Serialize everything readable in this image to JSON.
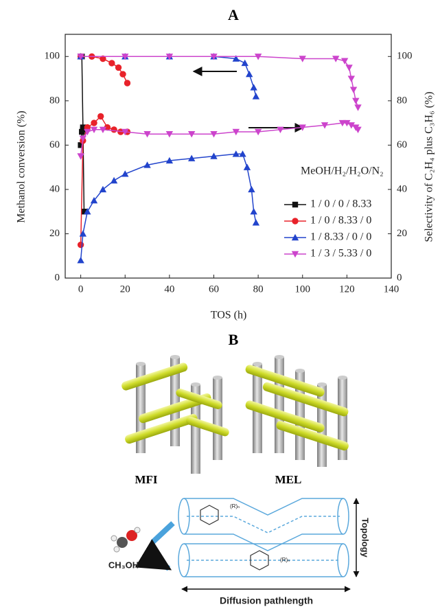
{
  "chart_data": {
    "type": "line",
    "title": "A",
    "x_label": "TOS (h)",
    "y_label": "Methanol conversion (%)",
    "y2_label": "Selectivity of C₂H₄ plus C₃H₆ (%)",
    "legend_title": "MeOH/H₂/H₂O/N₂",
    "legend": "right",
    "xlim": [
      -7,
      140
    ],
    "xticks": [
      0,
      20,
      40,
      60,
      80,
      100,
      120,
      140
    ],
    "ylim": [
      0,
      110
    ],
    "yticks": [
      0,
      20,
      40,
      60,
      80,
      100
    ],
    "y2lim": [
      0,
      110
    ],
    "y2ticks": [
      0,
      20,
      40,
      60,
      80,
      100
    ],
    "series": [
      {
        "name": "1 / 0 / 0 / 8.33",
        "color": "#111111",
        "marker": "square",
        "x": [
          0,
          0.5,
          1,
          1.5
        ],
        "values": [
          100,
          100,
          68,
          30
        ]
      },
      {
        "name": "1 / 0 / 8.33 / 0",
        "color": "#e8222a",
        "marker": "circle",
        "x": [
          0,
          5,
          10,
          14,
          17,
          19,
          21
        ],
        "values": [
          100,
          100,
          99,
          97,
          95,
          92,
          88
        ]
      },
      {
        "name": "1 / 8.33 / 0 / 0",
        "color": "#2244cc",
        "marker": "triangle-up",
        "x": [
          0,
          20,
          40,
          60,
          70,
          74,
          76,
          78,
          79
        ],
        "values": [
          100,
          100,
          100,
          100,
          99,
          97,
          92,
          86,
          82
        ]
      },
      {
        "name": "1 / 3 / 5.33 / 0",
        "color": "#cc44cc",
        "marker": "triangle-down",
        "x": [
          0,
          20,
          40,
          60,
          80,
          100,
          115,
          119,
          121,
          122,
          123,
          124,
          125
        ],
        "values": [
          100,
          100,
          100,
          100,
          100,
          99,
          99,
          98,
          95,
          90,
          85,
          80,
          77
        ]
      },
      {
        "color": "#111111",
        "marker": "square",
        "axis": "y2",
        "x": [
          0,
          0.5,
          1
        ],
        "values": [
          60,
          66,
          67
        ]
      },
      {
        "color": "#e8222a",
        "marker": "circle",
        "axis": "y2",
        "x": [
          0,
          1,
          3,
          6,
          9,
          12,
          15,
          18,
          21
        ],
        "values": [
          15,
          62,
          68,
          70,
          73,
          68,
          67,
          66,
          66
        ]
      },
      {
        "color": "#2244cc",
        "marker": "triangle-up",
        "axis": "y2",
        "x": [
          0,
          1,
          3,
          6,
          10,
          15,
          20,
          30,
          40,
          50,
          60,
          70,
          73,
          75,
          77,
          78,
          79
        ],
        "values": [
          8,
          20,
          30,
          35,
          40,
          44,
          47,
          51,
          53,
          54,
          55,
          56,
          56,
          50,
          40,
          30,
          25
        ]
      },
      {
        "color": "#cc44cc",
        "marker": "triangle-down",
        "axis": "y2",
        "x": [
          0,
          1,
          3,
          6,
          10,
          20,
          30,
          40,
          50,
          60,
          70,
          80,
          90,
          100,
          110,
          118,
          120,
          122,
          124,
          125
        ],
        "values": [
          55,
          63,
          66,
          67,
          67,
          66,
          65,
          65,
          65,
          65,
          66,
          66,
          67,
          68,
          69,
          70,
          70,
          69,
          68,
          67
        ]
      }
    ]
  },
  "diagram": {
    "title": "B",
    "frameworks": [
      "MFI",
      "MEL"
    ],
    "molecule": "CH₃OH",
    "substituent": "(R)ₙ",
    "vertical_label": "Topology",
    "horizontal_label": "Diffusion pathlength"
  }
}
